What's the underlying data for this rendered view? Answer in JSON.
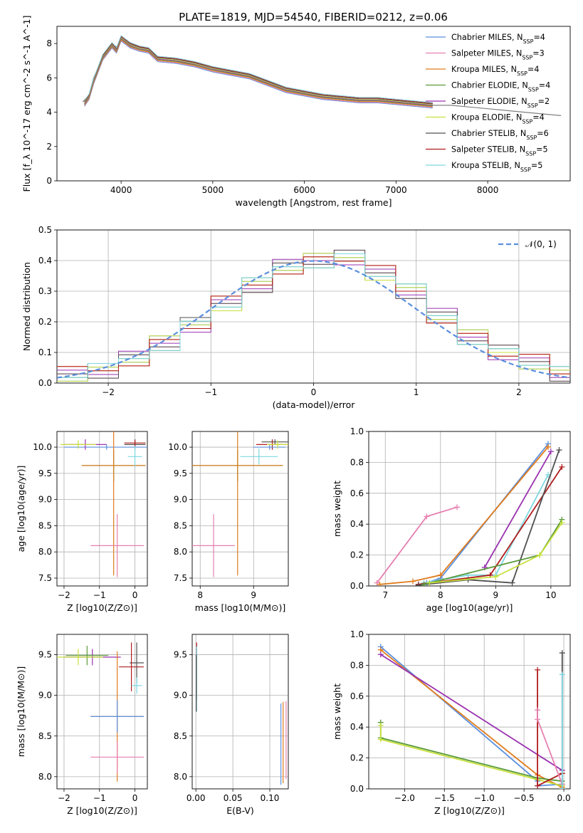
{
  "figure": {
    "title": "PLATE=1819, MJD=54540, FIBERID=0212, z=0.06",
    "series": [
      {
        "name": "Chabrier MILES",
        "nssp": "4",
        "color": "#5b8fdd"
      },
      {
        "name": "Salpeter MILES",
        "nssp": "3",
        "color": "#e67fb0"
      },
      {
        "name": "Kroupa MILES",
        "nssp": "4",
        "color": "#e07b1c"
      },
      {
        "name": "Chabrier ELODIE",
        "nssp": "4",
        "color": "#5a9a3a"
      },
      {
        "name": "Salpeter ELODIE",
        "nssp": "2",
        "color": "#9a32b0"
      },
      {
        "name": "Kroupa ELODIE",
        "nssp": "4",
        "color": "#c8e03c"
      },
      {
        "name": "Chabrier STELIB",
        "nssp": "6",
        "color": "#505050"
      },
      {
        "name": "Salpeter STELIB",
        "nssp": "5",
        "color": "#b01c1c"
      },
      {
        "name": "Kroupa STELIB",
        "nssp": "5",
        "color": "#7fd7e0"
      }
    ]
  },
  "chart_data": [
    {
      "type": "line",
      "id": "spectrum",
      "xlabel": "wavelength [Angstrom, rest frame]",
      "ylabel": "Flux [f_λ 10^-17 erg cm^-2 s^-1 A^-1]",
      "xlim": [
        3300,
        8900
      ],
      "ylim": [
        0,
        9
      ],
      "xticks": [
        4000,
        5000,
        6000,
        7000,
        8000
      ],
      "yticks": [
        0,
        2,
        4,
        6,
        8
      ],
      "legend_position": "top-right",
      "data_color": "#808080",
      "observed": {
        "x": [
          3580,
          3650,
          3700,
          3800,
          3900,
          3950,
          4000,
          4100,
          4200,
          4300,
          4400,
          4600,
          4800,
          4860,
          5000,
          5200,
          5400,
          5600,
          5800,
          6000,
          6200,
          6400,
          6600,
          6800,
          7000,
          7200,
          7400,
          7600,
          7800,
          8000,
          8200,
          8400,
          8600,
          8800
        ],
        "y": [
          4.6,
          5.0,
          6.0,
          7.2,
          8.0,
          7.8,
          8.2,
          8.0,
          7.8,
          7.6,
          7.2,
          7.0,
          6.8,
          6.8,
          6.5,
          6.3,
          6.1,
          5.7,
          5.3,
          5.1,
          4.9,
          4.8,
          4.7,
          4.7,
          4.6,
          4.5,
          4.4,
          4.4,
          4.3,
          4.2,
          4.1,
          4.0,
          3.9,
          3.8
        ]
      },
      "model": {
        "x": [
          3600,
          3650,
          3700,
          3800,
          3900,
          3950,
          4000,
          4100,
          4200,
          4300,
          4400,
          4600,
          4800,
          5000,
          5200,
          5400,
          5600,
          5800,
          6000,
          6200,
          6400,
          6600,
          6800,
          7000,
          7200,
          7400
        ],
        "y": [
          4.5,
          4.9,
          5.8,
          7.2,
          7.9,
          7.6,
          8.3,
          7.9,
          7.7,
          7.6,
          7.1,
          7.0,
          6.8,
          6.5,
          6.3,
          6.1,
          5.7,
          5.3,
          5.1,
          4.9,
          4.8,
          4.7,
          4.7,
          4.6,
          4.5,
          4.4
        ]
      }
    },
    {
      "type": "line",
      "id": "residuals",
      "xlabel": "(data-model)/error",
      "ylabel": "Normed distribution",
      "xlim": [
        -2.5,
        2.5
      ],
      "ylim": [
        0,
        0.5
      ],
      "xticks": [
        -2,
        -1,
        0,
        1,
        2
      ],
      "yticks": [
        0.0,
        0.1,
        0.2,
        0.3,
        0.4,
        0.5
      ],
      "legend": "𝒩(0, 1)",
      "legend_position": "top-right",
      "gaussian_color": "#5b8fdd",
      "hist_x": [
        -2.5,
        -2.2,
        -1.9,
        -1.6,
        -1.3,
        -1.0,
        -0.7,
        -0.4,
        -0.1,
        0.2,
        0.5,
        0.8,
        1.1,
        1.4,
        1.7,
        2.0,
        2.3,
        2.5
      ],
      "hist_y": [
        0.03,
        0.04,
        0.08,
        0.13,
        0.19,
        0.26,
        0.32,
        0.38,
        0.4,
        0.41,
        0.36,
        0.3,
        0.22,
        0.15,
        0.1,
        0.07,
        0.03,
        0.02
      ]
    },
    {
      "type": "scatter",
      "id": "age-vs-Z",
      "xlabel": "Z [log10(Z/Z⊙)]",
      "ylabel": "age  [log10(age/yr)]",
      "xlim": [
        -2.2,
        0.35
      ],
      "ylim": [
        7.35,
        10.3
      ],
      "xticks": [
        -2,
        -1,
        0
      ],
      "yticks": [
        7.5,
        8.0,
        8.5,
        9.0,
        9.5,
        10.0
      ],
      "points": [
        {
          "s": 6,
          "x": 0.0,
          "y": 10.05,
          "xe": 0.3,
          "ye": 0.1
        },
        {
          "s": 0,
          "x": -0.8,
          "y": 10.0,
          "xe": 1.2,
          "ye": 0.05
        },
        {
          "s": 4,
          "x": -1.4,
          "y": 10.05,
          "xe": 0.6,
          "ye": 0.1
        },
        {
          "s": 3,
          "x": -0.6,
          "y": 9.65,
          "xe": 0.9,
          "ye": 0.3
        },
        {
          "s": 2,
          "x": -0.6,
          "y": 9.65,
          "xe": 0.9,
          "ye": 2.1
        },
        {
          "s": 1,
          "x": -0.5,
          "y": 8.12,
          "xe": 0.75,
          "ye": 0.6
        },
        {
          "s": 7,
          "x": 0.0,
          "y": 10.08,
          "xe": 0.3,
          "ye": 0.06
        },
        {
          "s": 8,
          "x": 0.0,
          "y": 9.82,
          "xe": 0.2,
          "ye": 0.2
        },
        {
          "s": 5,
          "x": -1.6,
          "y": 10.05,
          "xe": 0.5,
          "ye": 0.08
        }
      ]
    },
    {
      "type": "scatter",
      "id": "age-vs-mass",
      "xlabel": "mass [log10(M/M⊙)]",
      "ylabel": "",
      "xlim": [
        7.85,
        9.65
      ],
      "ylim": [
        7.35,
        10.3
      ],
      "xticks": [
        8,
        9
      ],
      "yticks": [
        7.5,
        8.0,
        8.5,
        9.0,
        9.5,
        10.0
      ],
      "points": [
        {
          "s": 6,
          "x": 9.4,
          "y": 10.1,
          "xe": 0.25,
          "ye": 0.05
        },
        {
          "s": 7,
          "x": 9.35,
          "y": 10.05,
          "xe": 0.3,
          "ye": 0.1
        },
        {
          "s": 8,
          "x": 9.1,
          "y": 9.82,
          "xe": 0.35,
          "ye": 0.15
        },
        {
          "s": 3,
          "x": 8.7,
          "y": 9.65,
          "xe": 0.85,
          "ye": 0.3
        },
        {
          "s": 2,
          "x": 8.7,
          "y": 9.65,
          "xe": 0.85,
          "ye": 2.1
        },
        {
          "s": 1,
          "x": 8.25,
          "y": 8.12,
          "xe": 0.4,
          "ye": 0.6
        },
        {
          "s": 0,
          "x": 9.3,
          "y": 10.0,
          "xe": 0.3,
          "ye": 0.05
        },
        {
          "s": 5,
          "x": 9.45,
          "y": 10.05,
          "xe": 0.2,
          "ye": 0.08
        }
      ]
    },
    {
      "type": "line",
      "id": "massweight-vs-age",
      "xlabel": "age  [log10(age/yr)]",
      "ylabel": "mass weight",
      "xlim": [
        6.7,
        10.35
      ],
      "ylim": [
        0,
        1.0
      ],
      "xticks": [
        7,
        8,
        9,
        10
      ],
      "yticks": [
        0.0,
        0.2,
        0.4,
        0.6,
        0.8,
        1.0
      ],
      "series": [
        {
          "s": 1,
          "x": [
            6.85,
            7.75,
            8.3
          ],
          "y": [
            0.02,
            0.45,
            0.51
          ]
        },
        {
          "s": 0,
          "x": [
            7.75,
            8.0,
            9.95
          ],
          "y": [
            0.02,
            0.05,
            0.92
          ]
        },
        {
          "s": 2,
          "x": [
            6.9,
            7.5,
            8.0,
            9.95
          ],
          "y": [
            0.01,
            0.03,
            0.07,
            0.9
          ]
        },
        {
          "s": 4,
          "x": [
            8.8,
            10.0
          ],
          "y": [
            0.12,
            0.87
          ]
        },
        {
          "s": 8,
          "x": [
            7.7,
            8.5,
            9.0,
            9.95
          ],
          "y": [
            0.02,
            0.07,
            0.07,
            0.72
          ]
        },
        {
          "s": 7,
          "x": [
            7.6,
            8.9,
            10.2
          ],
          "y": [
            0.01,
            0.07,
            0.77
          ]
        },
        {
          "s": 6,
          "x": [
            7.6,
            8.5,
            9.3,
            10.15
          ],
          "y": [
            0.005,
            0.04,
            0.02,
            0.88
          ]
        },
        {
          "s": 3,
          "x": [
            7.7,
            9.8,
            10.2
          ],
          "y": [
            0.01,
            0.2,
            0.43
          ]
        },
        {
          "s": 5,
          "x": [
            7.8,
            9.0,
            9.8,
            10.2
          ],
          "y": [
            0.02,
            0.06,
            0.2,
            0.41
          ]
        }
      ]
    },
    {
      "type": "scatter",
      "id": "mass-vs-Z",
      "xlabel": "Z [log10(Z/Z⊙)]",
      "ylabel": "mass [log10(M/M⊙)]",
      "xlim": [
        -2.2,
        0.35
      ],
      "ylim": [
        7.85,
        9.75
      ],
      "xticks": [
        -2,
        -1,
        0
      ],
      "yticks": [
        8.0,
        8.5,
        9.0,
        9.5
      ],
      "points": [
        {
          "s": 6,
          "x": 0.05,
          "y": 9.4,
          "xe": 0.2,
          "ye": 0.25
        },
        {
          "s": 7,
          "x": -0.1,
          "y": 9.35,
          "xe": 0.35,
          "ye": 0.3
        },
        {
          "s": 8,
          "x": 0.05,
          "y": 9.12,
          "xe": 0.15,
          "ye": 0.1
        },
        {
          "s": 4,
          "x": -1.2,
          "y": 9.47,
          "xe": 0.8,
          "ye": 0.1
        },
        {
          "s": 3,
          "x": -1.35,
          "y": 9.49,
          "xe": 0.6,
          "ye": 0.12
        },
        {
          "s": 5,
          "x": -1.6,
          "y": 9.47,
          "xe": 0.7,
          "ye": 0.1
        },
        {
          "s": 2,
          "x": -0.5,
          "y": 8.74,
          "xe": 0.75,
          "ye": 0.8
        },
        {
          "s": 0,
          "x": -0.5,
          "y": 8.74,
          "xe": 0.75,
          "ye": 0.2
        },
        {
          "s": 1,
          "x": -0.5,
          "y": 8.24,
          "xe": 0.75,
          "ye": 0.2
        }
      ]
    },
    {
      "type": "scatter",
      "id": "mass-vs-EBV",
      "xlabel": "E(B-V)",
      "ylabel": "",
      "xlim": [
        -0.005,
        0.125
      ],
      "ylim": [
        7.85,
        9.75
      ],
      "xticks": [
        0.0,
        0.05,
        0.1
      ],
      "yticks": [
        8.0,
        8.5,
        9.0,
        9.5
      ],
      "points": [
        {
          "s": 7,
          "x": 0.001,
          "y": 9.3,
          "xe": 0,
          "ye": 0.35
        },
        {
          "s": 8,
          "x": 0.001,
          "y": 9.2,
          "xe": 0,
          "ye": 0.4
        },
        {
          "s": 6,
          "x": 0.0005,
          "y": 9.15,
          "xe": 0,
          "ye": 0.35
        },
        {
          "s": 0,
          "x": 0.115,
          "y": 8.4,
          "xe": 0,
          "ye": 0.5
        },
        {
          "s": 2,
          "x": 0.118,
          "y": 8.42,
          "xe": 0,
          "ye": 0.5
        },
        {
          "s": 1,
          "x": 0.122,
          "y": 8.45,
          "xe": 0,
          "ye": 0.48
        }
      ]
    },
    {
      "type": "line",
      "id": "massweight-vs-Z",
      "xlabel": "Z [log10(Z/Z⊙)]",
      "ylabel": "mass weight",
      "xlim": [
        -2.45,
        0.08
      ],
      "ylim": [
        0,
        1.0
      ],
      "xticks": [
        -2.0,
        -1.5,
        -1.0,
        -0.5,
        0.0
      ],
      "yticks": [
        0.0,
        0.2,
        0.4,
        0.6,
        0.8,
        1.0
      ],
      "series": [
        {
          "s": 0,
          "x": [
            -2.3,
            -0.33,
            -0.33,
            -0.02
          ],
          "y": [
            0.92,
            0.05,
            0.02,
            0.03
          ]
        },
        {
          "s": 2,
          "x": [
            -2.3,
            -0.33,
            -0.02
          ],
          "y": [
            0.9,
            0.09,
            0.01
          ]
        },
        {
          "s": 4,
          "x": [
            -2.3,
            -0.02
          ],
          "y": [
            0.87,
            0.12
          ]
        },
        {
          "s": 3,
          "x": [
            -2.3,
            -2.3,
            -0.33,
            -0.02
          ],
          "y": [
            0.43,
            0.33,
            0.07,
            0.05
          ]
        },
        {
          "s": 5,
          "x": [
            -2.3,
            -2.3,
            -0.33,
            -0.02
          ],
          "y": [
            0.41,
            0.32,
            0.06,
            0.02
          ]
        },
        {
          "s": 7,
          "x": [
            -0.33,
            -0.33,
            -0.02
          ],
          "y": [
            0.77,
            0.02,
            0.1
          ]
        },
        {
          "s": 1,
          "x": [
            -0.33,
            -0.33,
            -0.02
          ],
          "y": [
            0.51,
            0.45,
            0.03
          ]
        },
        {
          "s": 6,
          "x": [
            -0.02,
            -0.02
          ],
          "y": [
            0.88,
            0.0
          ]
        },
        {
          "s": 8,
          "x": [
            -0.02,
            -0.02
          ],
          "y": [
            0.74,
            0.0
          ]
        }
      ]
    }
  ]
}
